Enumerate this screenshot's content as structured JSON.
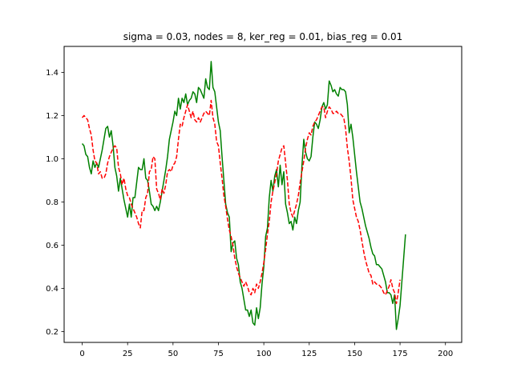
{
  "chart_data": {
    "type": "line",
    "title": "sigma = 0.03, nodes = 8, ker_reg = 0.01, bias_reg = 0.01",
    "xlabel": "",
    "ylabel": "",
    "xlim": [
      -9.95,
      208.95
    ],
    "ylim": [
      0.15,
      1.52
    ],
    "xticks": [
      0,
      25,
      50,
      75,
      100,
      125,
      150,
      175,
      200
    ],
    "yticks": [
      0.2,
      0.4,
      0.6,
      0.8,
      1.0,
      1.2,
      1.4
    ],
    "ytick_labels": [
      "0.2",
      "0.4",
      "0.6",
      "0.8",
      "1.0",
      "1.2",
      "1.4"
    ],
    "grid": false,
    "series": [
      {
        "color": "#008000",
        "style": "solid",
        "values": [
          1.07,
          1.06,
          1.02,
          1.01,
          0.96,
          0.93,
          0.99,
          0.96,
          0.98,
          0.96,
          1.0,
          1.04,
          1.09,
          1.14,
          1.15,
          1.1,
          1.13,
          1.06,
          0.96,
          0.92,
          0.85,
          0.91,
          0.86,
          0.81,
          0.77,
          0.73,
          0.79,
          0.73,
          0.82,
          0.82,
          0.89,
          0.96,
          0.95,
          0.95,
          1.0,
          0.91,
          0.9,
          0.85,
          0.79,
          0.78,
          0.76,
          0.78,
          0.76,
          0.8,
          0.85,
          0.9,
          0.95,
          1.01,
          1.09,
          1.13,
          1.17,
          1.22,
          1.2,
          1.28,
          1.23,
          1.28,
          1.26,
          1.3,
          1.25,
          1.27,
          1.28,
          1.31,
          1.3,
          1.26,
          1.33,
          1.32,
          1.3,
          1.28,
          1.37,
          1.33,
          1.32,
          1.45,
          1.33,
          1.31,
          1.24,
          1.17,
          1.13,
          1.01,
          0.9,
          0.79,
          0.75,
          0.73,
          0.57,
          0.61,
          0.62,
          0.54,
          0.51,
          0.43,
          0.4,
          0.35,
          0.3,
          0.3,
          0.27,
          0.3,
          0.24,
          0.23,
          0.31,
          0.26,
          0.31,
          0.42,
          0.5,
          0.64,
          0.68,
          0.82,
          0.9,
          0.85,
          0.92,
          0.95,
          0.87,
          0.97,
          0.88,
          0.94,
          0.79,
          0.75,
          0.7,
          0.71,
          0.67,
          0.73,
          0.7,
          0.76,
          0.8,
          0.97,
          1.09,
          1.03,
          1.0,
          0.99,
          1.01,
          1.1,
          1.17,
          1.16,
          1.14,
          1.18,
          1.24,
          1.26,
          1.23,
          1.25,
          1.36,
          1.34,
          1.31,
          1.32,
          1.3,
          1.29,
          1.33,
          1.32,
          1.32,
          1.31,
          1.25,
          1.12,
          1.16,
          1.1,
          1.02,
          0.94,
          0.87,
          0.8,
          0.77,
          0.73,
          0.69,
          0.66,
          0.63,
          0.59,
          0.56,
          0.55,
          0.51,
          0.51,
          0.5,
          0.49,
          0.46,
          0.43,
          0.38,
          0.38,
          0.37,
          0.33,
          0.37,
          0.21,
          0.26,
          0.32,
          0.43,
          0.54,
          0.65
        ]
      },
      {
        "color": "#ff0000",
        "style": "dashed",
        "values": [
          1.19,
          1.2,
          1.19,
          1.18,
          1.14,
          1.11,
          1.04,
          0.99,
          0.98,
          0.93,
          0.94,
          0.91,
          0.91,
          0.93,
          0.98,
          1.01,
          1.03,
          1.05,
          1.06,
          1.05,
          0.96,
          0.93,
          0.88,
          0.91,
          0.86,
          0.83,
          0.82,
          0.79,
          0.77,
          0.75,
          0.73,
          0.7,
          0.68,
          0.76,
          0.76,
          0.82,
          0.84,
          0.94,
          0.95,
          1.01,
          1.0,
          0.86,
          0.84,
          0.81,
          0.86,
          0.84,
          0.88,
          0.94,
          0.95,
          0.94,
          0.97,
          0.98,
          1.01,
          1.09,
          1.16,
          1.15,
          1.19,
          1.22,
          1.25,
          1.22,
          1.19,
          1.22,
          1.18,
          1.17,
          1.19,
          1.17,
          1.19,
          1.21,
          1.22,
          1.21,
          1.2,
          1.27,
          1.19,
          1.16,
          1.08,
          1.06,
          0.98,
          0.91,
          0.83,
          0.78,
          0.72,
          0.67,
          0.64,
          0.6,
          0.54,
          0.5,
          0.47,
          0.45,
          0.43,
          0.41,
          0.43,
          0.41,
          0.38,
          0.37,
          0.4,
          0.38,
          0.42,
          0.4,
          0.43,
          0.47,
          0.52,
          0.58,
          0.65,
          0.71,
          0.8,
          0.85,
          0.89,
          0.93,
          0.99,
          1.02,
          1.05,
          1.06,
          0.98,
          0.9,
          0.79,
          0.75,
          0.73,
          0.76,
          0.79,
          0.83,
          0.89,
          0.94,
          0.99,
          1.05,
          1.09,
          1.12,
          1.11,
          1.15,
          1.17,
          1.18,
          1.2,
          1.22,
          1.24,
          1.24,
          1.19,
          1.22,
          1.24,
          1.23,
          1.21,
          1.21,
          1.22,
          1.21,
          1.21,
          1.2,
          1.19,
          1.14,
          1.05,
          0.99,
          0.91,
          0.81,
          0.77,
          0.73,
          0.71,
          0.67,
          0.62,
          0.57,
          0.53,
          0.5,
          0.47,
          0.46,
          0.42,
          0.43,
          0.42,
          0.42,
          0.41,
          0.4,
          0.38,
          0.37,
          0.39,
          0.41,
          0.44,
          0.4,
          0.38,
          0.33,
          0.38,
          0.44
        ]
      }
    ]
  }
}
